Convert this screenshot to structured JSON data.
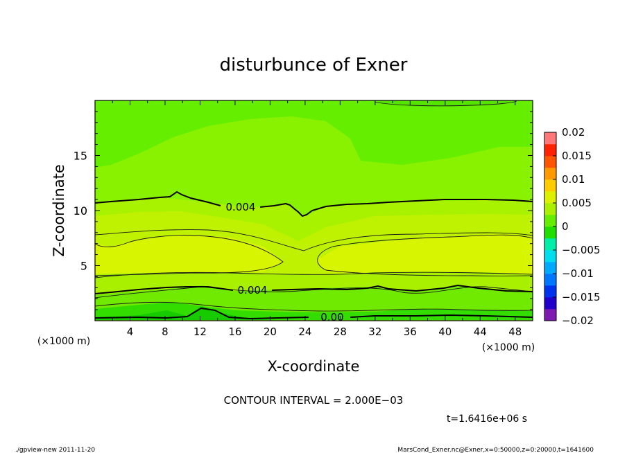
{
  "chart_data": {
    "type": "contour",
    "title": "disturbunce of Exner",
    "xlabel": "X-coordinate",
    "ylabel": "Z-coordinate",
    "x_unit_note": "(×1000 m)",
    "y_unit_note": "(×1000 m)",
    "xlim": [
      0,
      50
    ],
    "ylim": [
      0,
      20
    ],
    "x_ticks": [
      4,
      8,
      12,
      16,
      20,
      24,
      28,
      32,
      36,
      40,
      44,
      48
    ],
    "y_ticks": [
      5,
      10,
      15
    ],
    "colorbar": {
      "ticks": [
        0.02,
        0.015,
        0.01,
        0.005,
        0,
        -0.005,
        -0.01,
        -0.015,
        -0.02
      ],
      "tick_labels": [
        "0.02",
        "0.015",
        "0.01",
        "0.005",
        "0",
        "−0.005",
        "−0.01",
        "−0.015",
        "−0.02"
      ],
      "range": [
        -0.02,
        0.02
      ]
    },
    "contour_labels": [
      {
        "text": "0.004",
        "x": 21.6,
        "z": 10.3
      },
      {
        "text": "0.004",
        "x": 23.0,
        "z": 2.7
      },
      {
        "text": "0.00",
        "x": 26.4,
        "z": 0.3
      }
    ],
    "contour_interval_text": "CONTOUR INTERVAL = 2.000E−03",
    "time_text": "t=1.6416e+06 s"
  },
  "footer": {
    "left": "./gpview-new   2011-11-20",
    "right": "MarsCond_Exner.nc@Exner,x=0:50000,z=0:20000,t=1641600"
  }
}
